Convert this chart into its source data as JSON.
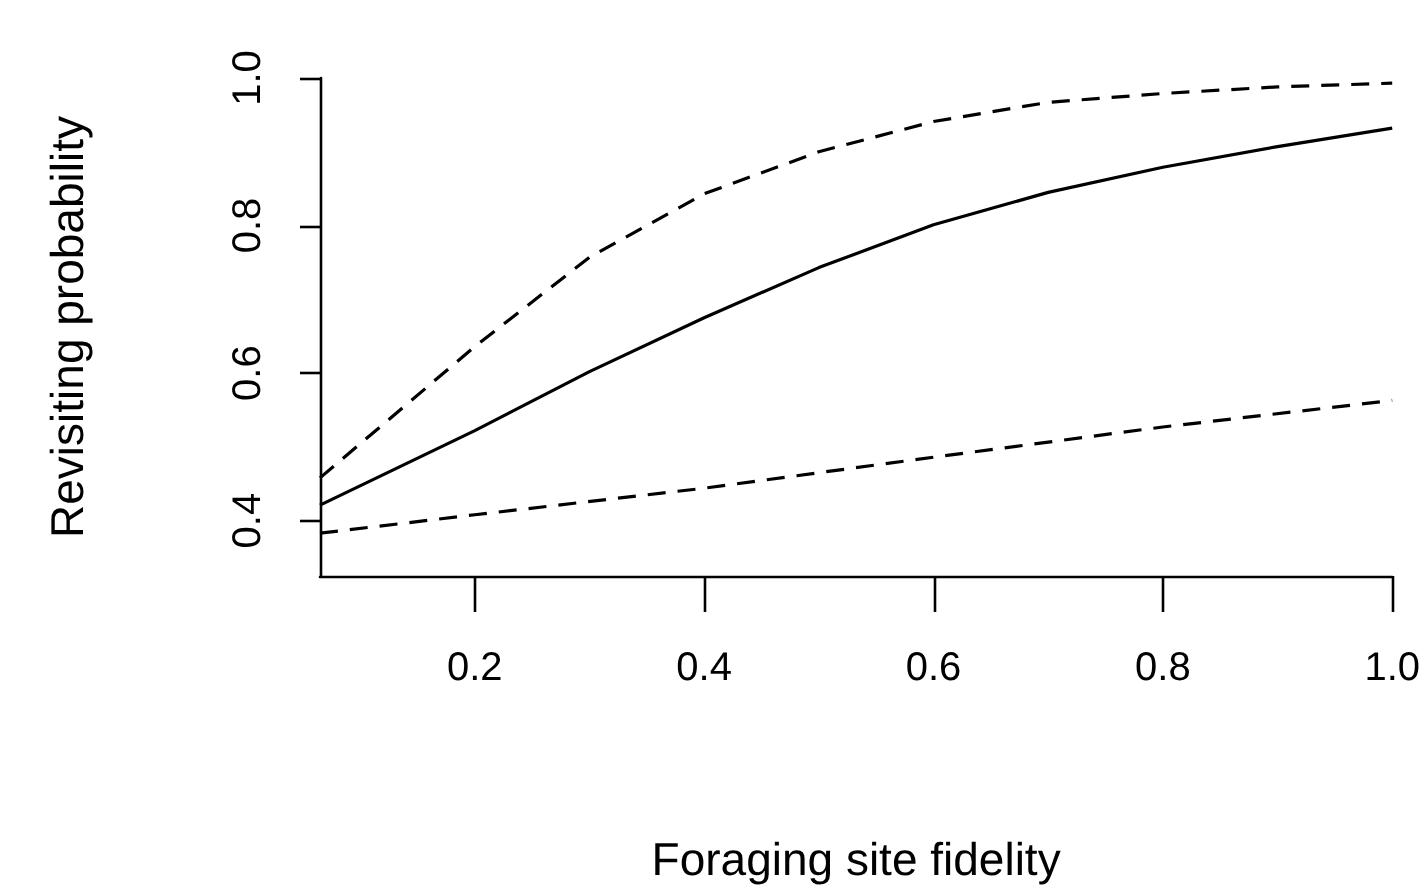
{
  "chart_data": {
    "type": "line",
    "xlabel": "Foraging site fidelity",
    "ylabel": "Revisiting probability",
    "xlim": [
      0.065,
      1.0
    ],
    "xticks": [
      0.2,
      0.4,
      0.6,
      0.8,
      {
        "value": 1,
        "label": "1.0"
      }
    ],
    "ylim": [
      0.325,
      1.0
    ],
    "yticks": [
      0.4,
      0.6,
      0.8,
      {
        "value": 1,
        "label": "1.0"
      }
    ],
    "grid": false,
    "marker": "none",
    "series": [
      {
        "color": "#000000",
        "line_style": "solid",
        "x": [
          0.065,
          0.2,
          0.3,
          0.4,
          0.5,
          0.6,
          0.7,
          0.8,
          0.9,
          1.0
        ],
        "values": [
          0.421,
          0.522,
          0.602,
          0.675,
          0.743,
          0.801,
          0.845,
          0.879,
          0.907,
          0.932
        ]
      },
      {
        "color": "#000000",
        "line_style": "dashed",
        "x": [
          0.065,
          0.2,
          0.3,
          0.4,
          0.5,
          0.6,
          0.7,
          0.8,
          0.9,
          1.0
        ],
        "values": [
          0.458,
          0.636,
          0.757,
          0.843,
          0.9,
          0.941,
          0.967,
          0.979,
          0.988,
          0.993
        ]
      },
      {
        "color": "#000000",
        "line_style": "dashed",
        "x": [
          0.065,
          0.2,
          0.4,
          0.6,
          0.8,
          1.0
        ],
        "values": [
          0.383,
          0.408,
          0.444,
          0.486,
          0.527,
          0.563
        ]
      }
    ]
  }
}
